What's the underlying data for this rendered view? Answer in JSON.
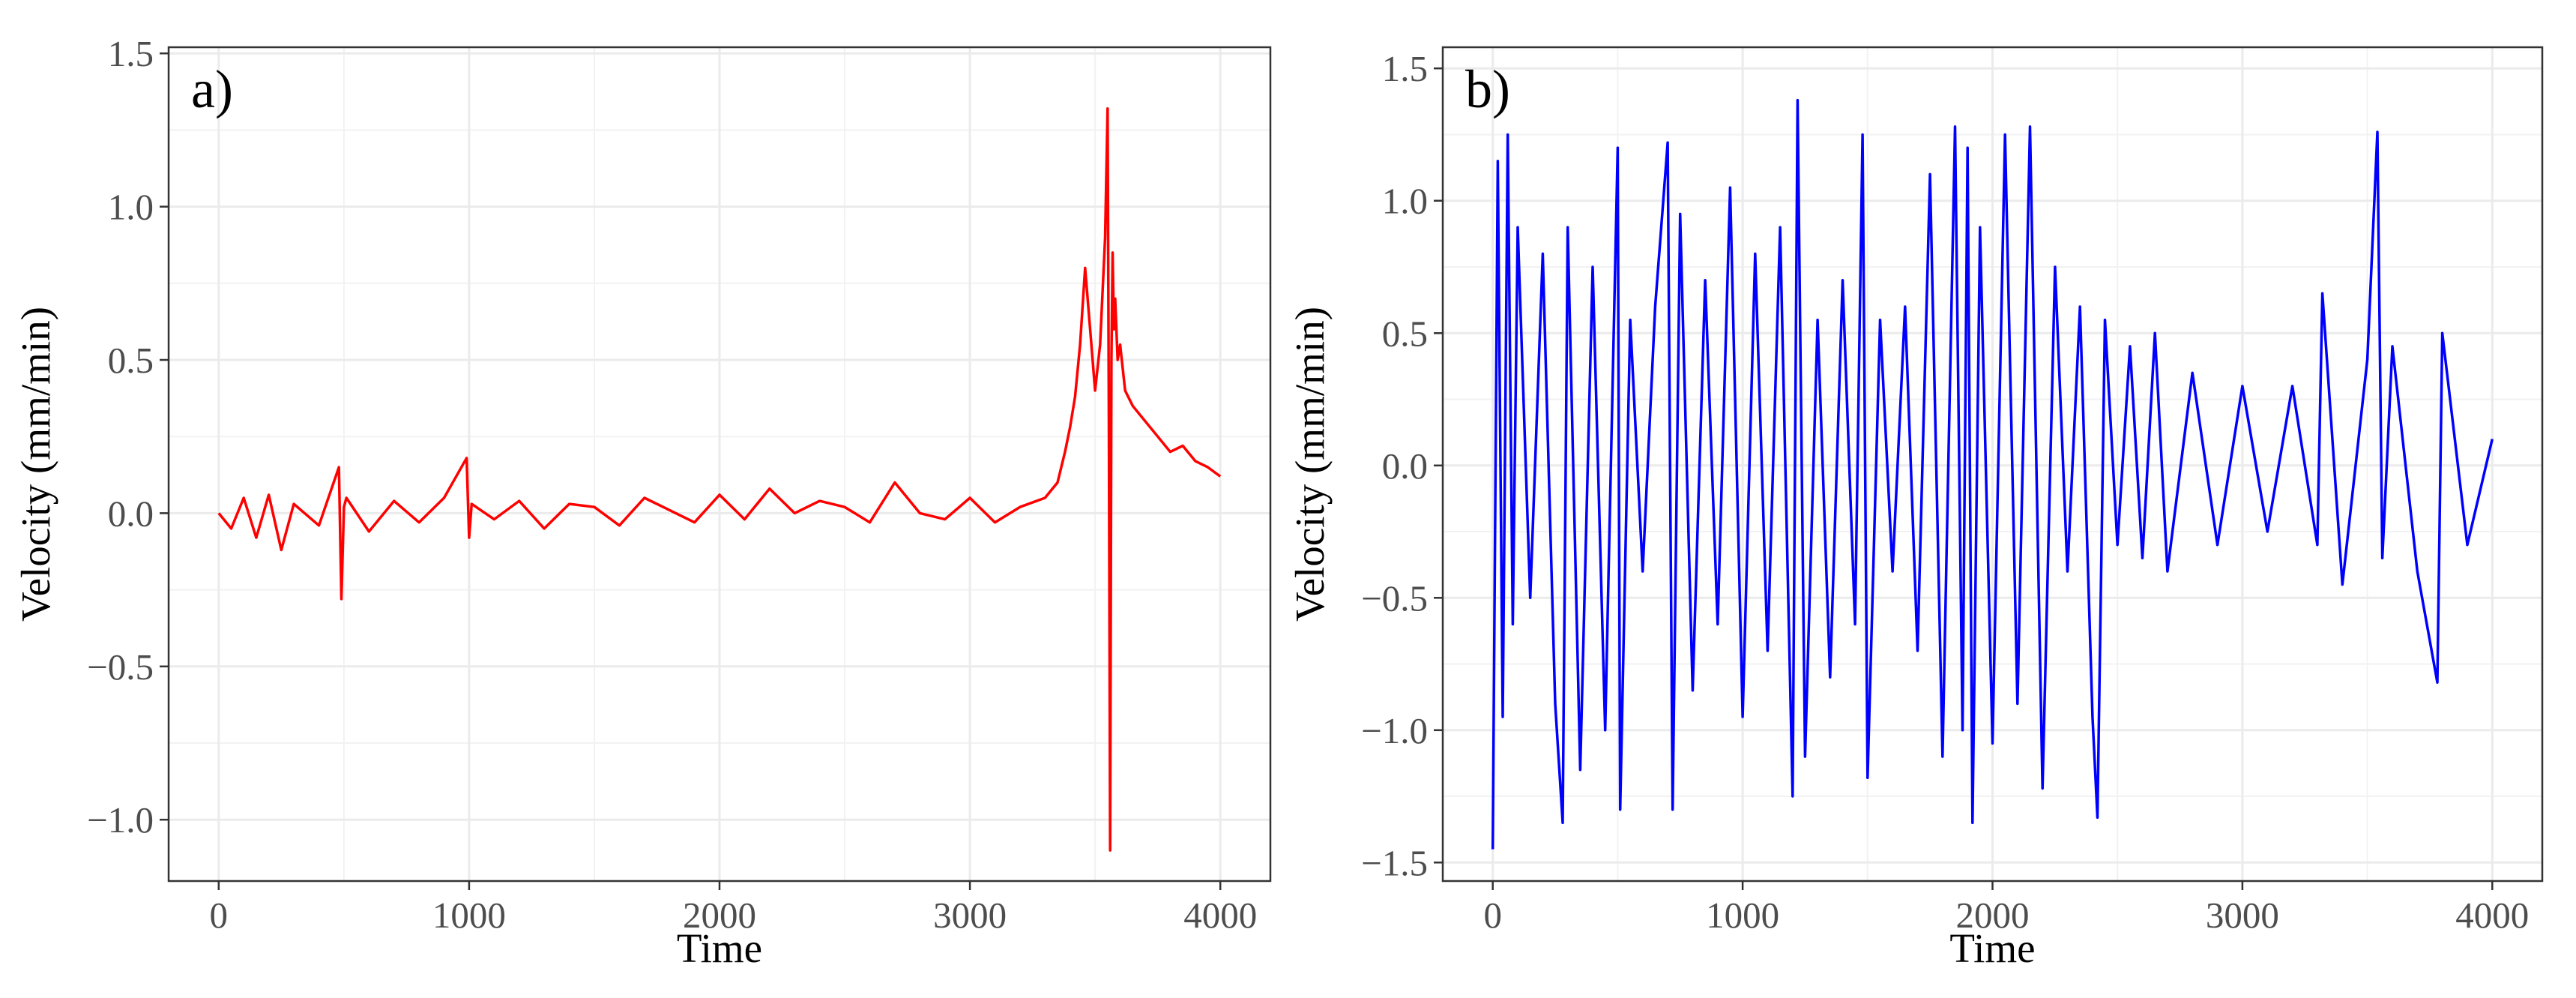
{
  "chart_data": [
    {
      "type": "line",
      "panel_label": "a)",
      "xlabel": "Time",
      "ylabel": "Velocity (mm/min)",
      "xlim": [
        -200,
        4200
      ],
      "ylim": [
        -1.2,
        1.52
      ],
      "xticks": [
        0,
        1000,
        2000,
        3000,
        4000
      ],
      "xtick_labels": [
        "0",
        "1000",
        "2000",
        "3000",
        "4000"
      ],
      "yticks": [
        -1.0,
        -0.5,
        0.0,
        0.5,
        1.0,
        1.5
      ],
      "ytick_labels": [
        "−1.0",
        "−0.5",
        "0.0",
        "0.5",
        "1.0",
        "1.5"
      ],
      "grid": true,
      "line_color": "#ff0000",
      "series": [
        {
          "x": [
            0,
            50,
            100,
            150,
            200,
            250,
            300,
            400,
            480,
            490,
            500,
            510,
            600,
            700,
            800,
            900,
            990,
            1000,
            1010,
            1100,
            1200,
            1300,
            1400,
            1500,
            1600,
            1700,
            1800,
            1900,
            2000,
            2100,
            2200,
            2300,
            2400,
            2500,
            2600,
            2700,
            2800,
            2900,
            3000,
            3100,
            3200,
            3300,
            3350,
            3380,
            3400,
            3420,
            3440,
            3460,
            3480,
            3500,
            3520,
            3540,
            3550,
            3555,
            3560,
            3565,
            3570,
            3575,
            3580,
            3590,
            3600,
            3620,
            3650,
            3700,
            3750,
            3800,
            3850,
            3900,
            3950,
            4000
          ],
          "y": [
            0.0,
            -0.05,
            0.05,
            -0.08,
            0.06,
            -0.12,
            0.03,
            -0.04,
            0.15,
            -0.28,
            0.02,
            0.05,
            -0.06,
            0.04,
            -0.03,
            0.05,
            0.18,
            -0.08,
            0.03,
            -0.02,
            0.04,
            -0.05,
            0.03,
            0.02,
            -0.04,
            0.05,
            0.01,
            -0.03,
            0.06,
            -0.02,
            0.08,
            0.0,
            0.04,
            0.02,
            -0.03,
            0.1,
            0.0,
            -0.02,
            0.05,
            -0.03,
            0.02,
            0.05,
            0.1,
            0.2,
            0.28,
            0.38,
            0.55,
            0.8,
            0.6,
            0.4,
            0.55,
            0.9,
            1.32,
            0.3,
            -1.1,
            0.5,
            0.85,
            0.6,
            0.7,
            0.5,
            0.55,
            0.4,
            0.35,
            0.3,
            0.25,
            0.2,
            0.22,
            0.17,
            0.15,
            0.12
          ]
        }
      ]
    },
    {
      "type": "line",
      "panel_label": "b)",
      "xlabel": "Time",
      "ylabel": "Velocity (mm/min)",
      "xlim": [
        -200,
        4200
      ],
      "ylim": [
        -1.57,
        1.58
      ],
      "xticks": [
        0,
        1000,
        2000,
        3000,
        4000
      ],
      "xtick_labels": [
        "0",
        "1000",
        "2000",
        "3000",
        "4000"
      ],
      "yticks": [
        -1.5,
        -1.0,
        -0.5,
        0.0,
        0.5,
        1.0,
        1.5
      ],
      "ytick_labels": [
        "−1.5",
        "−1.0",
        "−0.5",
        "0.0",
        "0.5",
        "1.0",
        "1.5"
      ],
      "grid": true,
      "line_color": "#0000ff",
      "series": [
        {
          "x": [
            0,
            20,
            40,
            60,
            80,
            100,
            150,
            200,
            250,
            280,
            300,
            350,
            400,
            450,
            500,
            510,
            550,
            600,
            650,
            700,
            720,
            750,
            800,
            850,
            900,
            950,
            1000,
            1050,
            1100,
            1150,
            1200,
            1220,
            1250,
            1300,
            1350,
            1400,
            1450,
            1480,
            1500,
            1550,
            1600,
            1650,
            1700,
            1750,
            1800,
            1850,
            1880,
            1900,
            1920,
            1950,
            2000,
            2050,
            2100,
            2150,
            2200,
            2250,
            2300,
            2350,
            2400,
            2420,
            2450,
            2500,
            2550,
            2600,
            2650,
            2700,
            2800,
            2900,
            3000,
            3100,
            3200,
            3300,
            3320,
            3400,
            3500,
            3540,
            3560,
            3600,
            3700,
            3780,
            3800,
            3900,
            4000
          ],
          "y": [
            -1.45,
            1.15,
            -0.95,
            1.25,
            -0.6,
            0.9,
            -0.5,
            0.8,
            -0.9,
            -1.35,
            0.9,
            -1.15,
            0.75,
            -1.0,
            1.2,
            -1.3,
            0.55,
            -0.4,
            0.6,
            1.22,
            -1.3,
            0.95,
            -0.85,
            0.7,
            -0.6,
            1.05,
            -0.95,
            0.8,
            -0.7,
            0.9,
            -1.25,
            1.38,
            -1.1,
            0.55,
            -0.8,
            0.7,
            -0.6,
            1.25,
            -1.18,
            0.55,
            -0.4,
            0.6,
            -0.7,
            1.1,
            -1.1,
            1.28,
            -1.0,
            1.2,
            -1.35,
            0.9,
            -1.05,
            1.25,
            -0.9,
            1.28,
            -1.22,
            0.75,
            -0.4,
            0.6,
            -0.95,
            -1.33,
            0.55,
            -0.3,
            0.45,
            -0.35,
            0.5,
            -0.4,
            0.35,
            -0.3,
            0.3,
            -0.25,
            0.3,
            -0.3,
            0.65,
            -0.45,
            0.4,
            1.26,
            -0.35,
            0.45,
            -0.4,
            -0.82,
            0.5,
            -0.3,
            0.1
          ]
        }
      ]
    }
  ]
}
